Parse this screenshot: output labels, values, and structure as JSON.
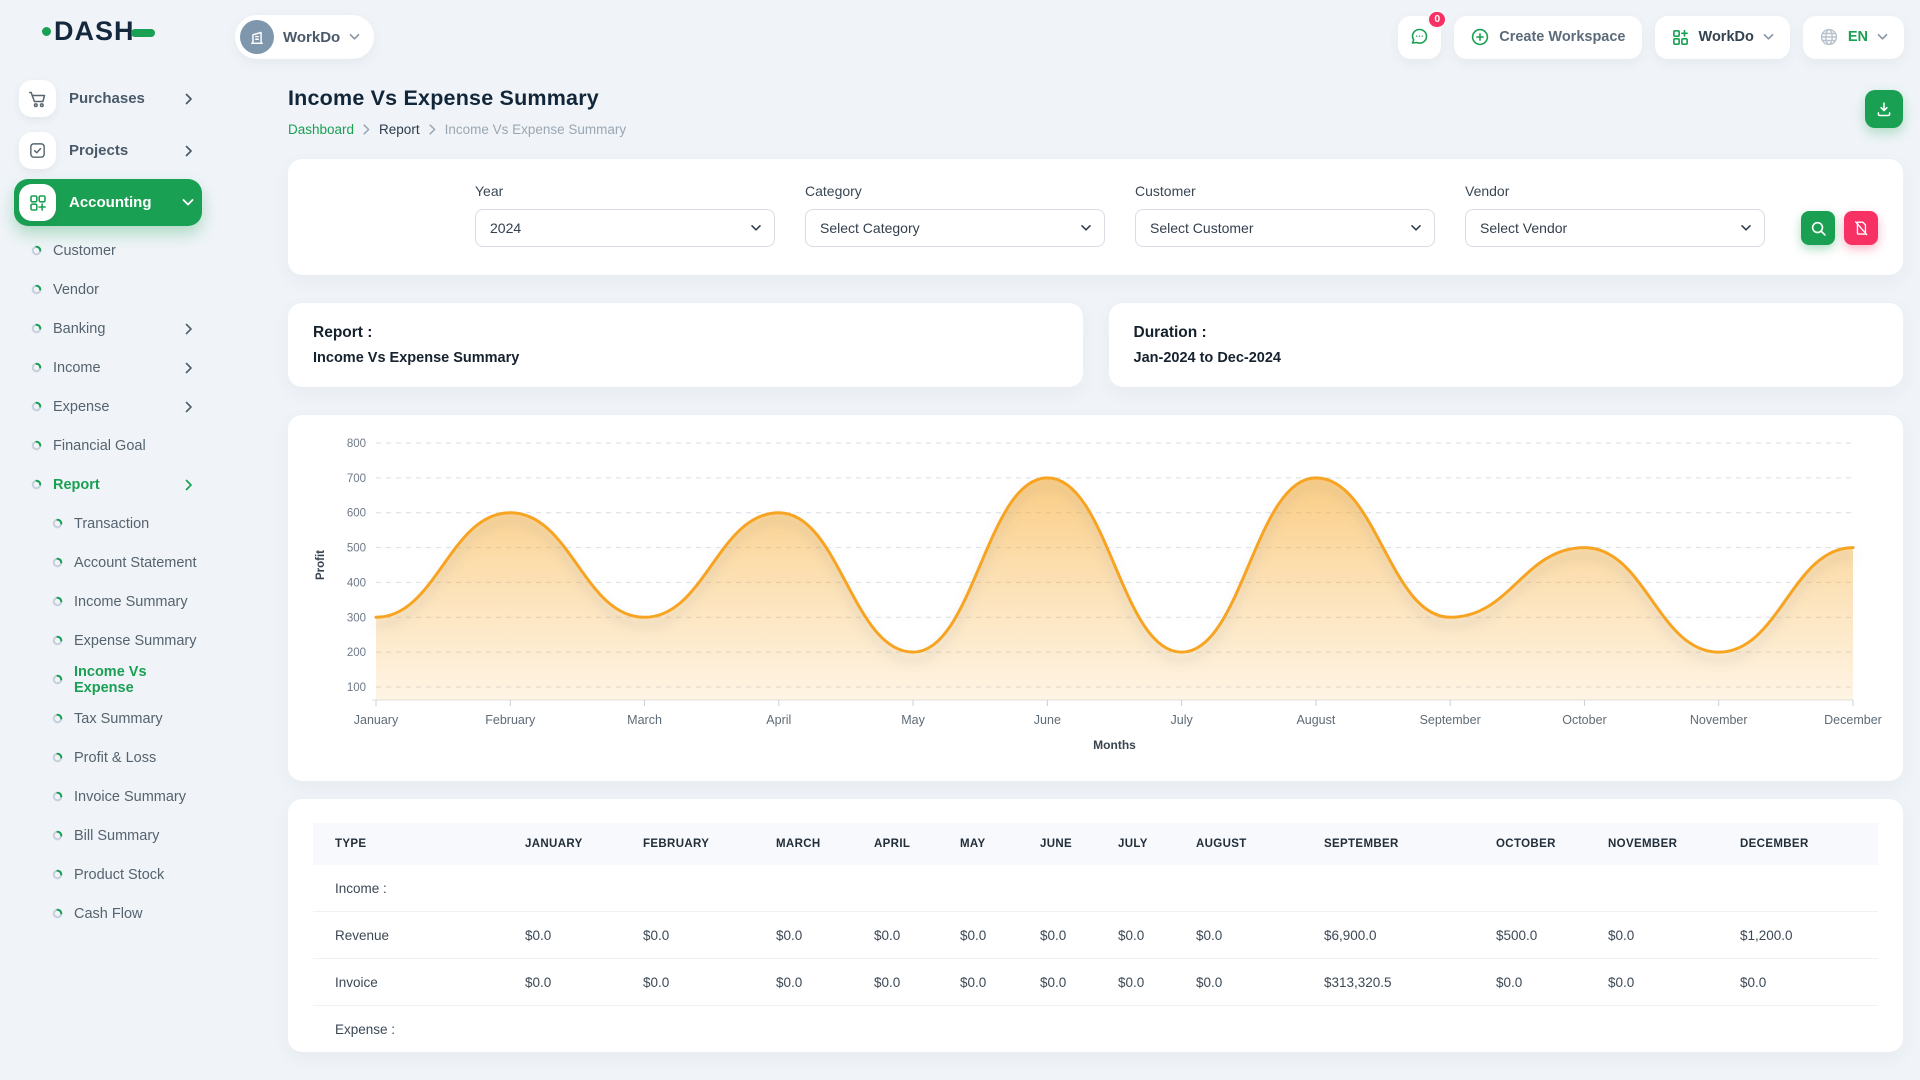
{
  "colors": {
    "primary": "#1aa053",
    "danger_pink": "#f73164",
    "chart_line_orange": "#f7a421",
    "page_background": "#f0f4f8",
    "heading_text": "#12263a"
  },
  "brand": {
    "name": "DASH",
    "logo_icon": "dash-wordmark"
  },
  "topbar": {
    "workspace_switcher": {
      "label": "WorkDo",
      "icon": "building-icon",
      "chevron": "chevron-down-icon"
    },
    "messages": {
      "icon": "chat-bubble-icon",
      "badge_count": "0"
    },
    "create_workspace": {
      "label": "Create Workspace",
      "icon": "plus-circle-icon"
    },
    "app_menu": {
      "label": "WorkDo",
      "icon": "modules-grid-icon",
      "chevron": "chevron-down-icon"
    },
    "language": {
      "code": "EN",
      "icon": "globe-icon",
      "chevron": "chevron-down-icon"
    }
  },
  "sidebar": {
    "items": [
      {
        "label": "Purchases",
        "level": 0,
        "icon": "cart-icon",
        "chevron": "right",
        "active": false
      },
      {
        "label": "Projects",
        "level": 0,
        "icon": "check-square-icon",
        "chevron": "right",
        "active": false
      },
      {
        "label": "Accounting",
        "level": 0,
        "icon": "modules-plus-icon",
        "chevron": "down",
        "active": true
      },
      {
        "label": "Customer",
        "level": 1,
        "chevron": "none",
        "active": false
      },
      {
        "label": "Vendor",
        "level": 1,
        "chevron": "none",
        "active": false
      },
      {
        "label": "Banking",
        "level": 1,
        "chevron": "right",
        "active": false
      },
      {
        "label": "Income",
        "level": 1,
        "chevron": "right",
        "active": false
      },
      {
        "label": "Expense",
        "level": 1,
        "chevron": "right",
        "active": false
      },
      {
        "label": "Financial Goal",
        "level": 1,
        "chevron": "none",
        "active": false
      },
      {
        "label": "Report",
        "level": 1,
        "chevron": "right",
        "active": true
      },
      {
        "label": "Transaction",
        "level": 2,
        "chevron": "none",
        "active": false
      },
      {
        "label": "Account Statement",
        "level": 2,
        "chevron": "none",
        "active": false
      },
      {
        "label": "Income Summary",
        "level": 2,
        "chevron": "none",
        "active": false
      },
      {
        "label": "Expense Summary",
        "level": 2,
        "chevron": "none",
        "active": false
      },
      {
        "label": "Income Vs Expense",
        "level": 2,
        "chevron": "none",
        "active": true
      },
      {
        "label": "Tax Summary",
        "level": 2,
        "chevron": "none",
        "active": false
      },
      {
        "label": "Profit & Loss",
        "level": 2,
        "chevron": "none",
        "active": false
      },
      {
        "label": "Invoice Summary",
        "level": 2,
        "chevron": "none",
        "active": false
      },
      {
        "label": "Bill Summary",
        "level": 2,
        "chevron": "none",
        "active": false
      },
      {
        "label": "Product Stock",
        "level": 2,
        "chevron": "none",
        "active": false
      },
      {
        "label": "Cash Flow",
        "level": 2,
        "chevron": "none",
        "active": false
      }
    ]
  },
  "page": {
    "title": "Income Vs Expense Summary",
    "breadcrumb": [
      {
        "label": "Dashboard"
      },
      {
        "label": "Report"
      },
      {
        "label": "Income Vs Expense Summary"
      }
    ],
    "download_button_icon": "download-icon"
  },
  "filters": {
    "year": {
      "label": "Year",
      "value": "2024"
    },
    "category": {
      "label": "Category",
      "value": "Select Category"
    },
    "customer": {
      "label": "Customer",
      "value": "Select Customer"
    },
    "vendor": {
      "label": "Vendor",
      "value": "Select Vendor"
    },
    "search_button_icon": "search-icon",
    "reset_button_icon": "file-slash-icon"
  },
  "summary_cards": {
    "report": {
      "label": "Report :",
      "value": "Income Vs Expense Summary"
    },
    "duration": {
      "label": "Duration :",
      "value": "Jan-2024 to Dec-2024"
    }
  },
  "chart_data": {
    "type": "area",
    "categories": [
      "January",
      "February",
      "March",
      "April",
      "May",
      "June",
      "July",
      "August",
      "September",
      "October",
      "November",
      "December"
    ],
    "series": [
      {
        "name": "Profit",
        "values": [
          300,
          600,
          300,
          600,
          200,
          700,
          200,
          700,
          300,
          500,
          200,
          500
        ]
      }
    ],
    "title": "",
    "xlabel": "Months",
    "ylabel": "Profit",
    "ylim": [
      100,
      800
    ],
    "yticks": [
      100,
      200,
      300,
      400,
      500,
      600,
      700,
      800
    ],
    "grid": "dashed-horizontal",
    "legend": "none",
    "line_color": "#f7a421",
    "fill": "orange-gradient"
  },
  "table": {
    "columns": [
      "TYPE",
      "JANUARY",
      "FEBRUARY",
      "MARCH",
      "APRIL",
      "MAY",
      "JUNE",
      "JULY",
      "AUGUST",
      "SEPTEMBER",
      "OCTOBER",
      "NOVEMBER",
      "DECEMBER"
    ],
    "rows": [
      {
        "type": "section",
        "label": "Income :"
      },
      {
        "type": "row",
        "label": "Revenue",
        "values": [
          "$0.0",
          "$0.0",
          "$0.0",
          "$0.0",
          "$0.0",
          "$0.0",
          "$0.0",
          "$0.0",
          "$6,900.0",
          "$500.0",
          "$0.0",
          "$1,200.0"
        ]
      },
      {
        "type": "row",
        "label": "Invoice",
        "values": [
          "$0.0",
          "$0.0",
          "$0.0",
          "$0.0",
          "$0.0",
          "$0.0",
          "$0.0",
          "$0.0",
          "$313,320.5",
          "$0.0",
          "$0.0",
          "$0.0"
        ]
      },
      {
        "type": "section",
        "label": "Expense :"
      }
    ]
  }
}
